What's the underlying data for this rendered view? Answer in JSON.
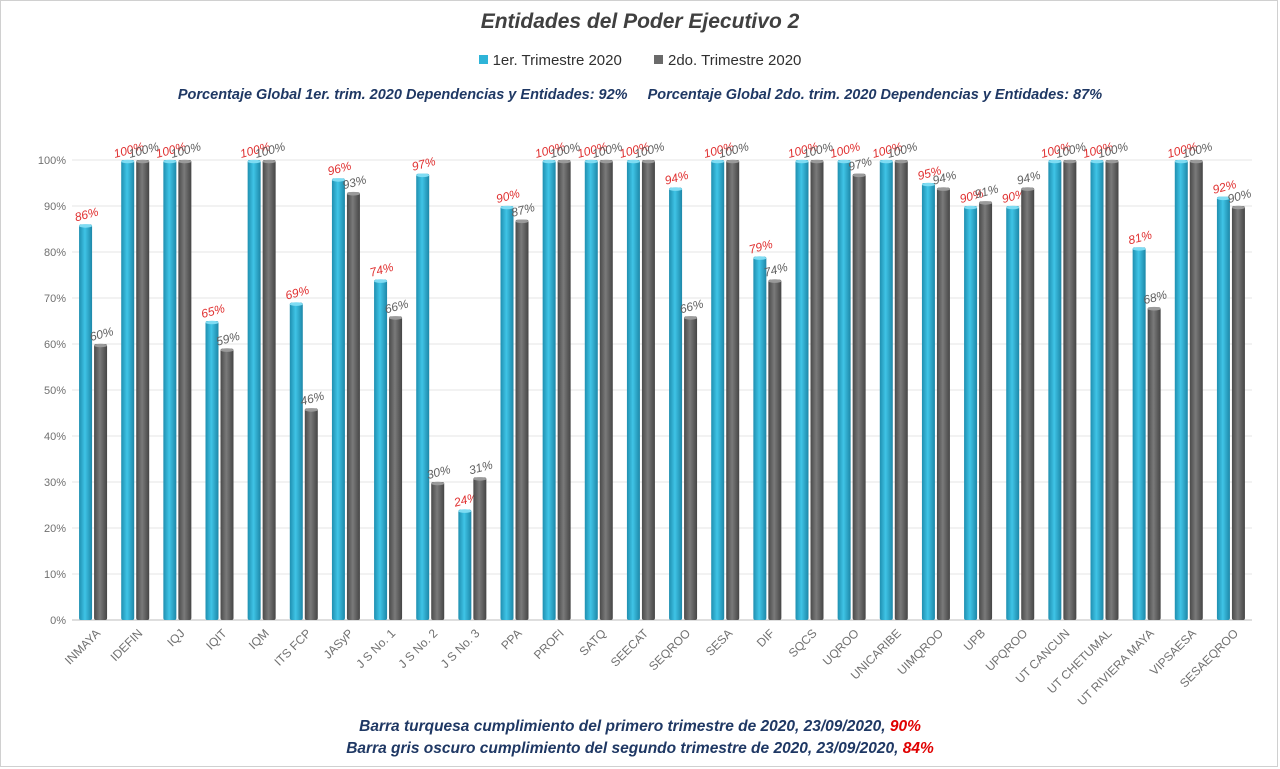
{
  "title": "Entidades del Poder Ejecutivo 2",
  "legend": [
    {
      "name": "1er. Trimestre 2020",
      "color": "#2eb4d8"
    },
    {
      "name": "2do. Trimestre 2020",
      "color": "#6a6a6a"
    }
  ],
  "global_q1": "Porcentaje Global 1er. trim. 2020 Dependencias y Entidades: 92%",
  "global_q2": "Porcentaje Global  2do. trim. 2020 Dependencias y Entidades: 87%",
  "footer": {
    "line1_text": "Barra turquesa cumplimiento del primero trimestre de 2020, 23/09/2020,",
    "line1_pct": "90%",
    "line2_text": "Barra gris oscuro cumplimiento del segundo trimestre de 2020, 23/09/2020,",
    "line2_pct": "84%"
  },
  "chart_data": {
    "type": "bar",
    "title": "Entidades del Poder Ejecutivo 2",
    "categories": [
      "INMAYA",
      "IDEFIN",
      "IQJ",
      "IQIT",
      "IQM",
      "ITS FCP",
      "JASyP",
      "J S No. 1",
      "J S No. 2",
      "J S No. 3",
      "PPA",
      "PROFI",
      "SATQ",
      "SEECAT",
      "SEQROO",
      "SESA",
      "DIF",
      "SQCS",
      "UQROO",
      "UNICARIBE",
      "UIMQROO",
      "UPB",
      "UPQROO",
      "UT CANCUN",
      "UT CHETUMAL",
      "UT RIVIERA MAYA",
      "VIPSAESA",
      "SESAEQROO"
    ],
    "series": [
      {
        "name": "1er. Trimestre 2020",
        "color": "#2eb4d8",
        "label_color": "#e03030",
        "values": [
          86,
          100,
          100,
          65,
          100,
          69,
          96,
          74,
          97,
          24,
          90,
          100,
          100,
          100,
          94,
          100,
          79,
          100,
          100,
          100,
          95,
          90,
          90,
          100,
          100,
          81,
          100,
          92
        ],
        "labels": [
          "86%",
          "100%",
          "100%",
          "65%",
          "100%",
          "69%",
          "96%",
          "74%",
          "97%",
          "24%",
          "90%",
          "100%",
          "100%",
          "100%",
          "94%",
          "100%",
          "79%",
          "100%",
          "100%",
          "100%",
          "95%",
          "90%",
          "90%",
          "100%",
          "100%",
          "81%",
          "100%",
          "92%"
        ]
      },
      {
        "name": "2do. Trimestre 2020",
        "color": "#6a6a6a",
        "label_color": "#606060",
        "values": [
          60,
          100,
          100,
          59,
          100,
          46,
          93,
          66,
          30,
          31,
          87,
          100,
          100,
          100,
          66,
          100,
          74,
          100,
          97,
          100,
          94,
          91,
          94,
          100,
          100,
          68,
          100,
          90
        ],
        "labels": [
          "60%",
          "100%",
          "100%",
          "59%",
          "100%",
          "46%",
          "93%",
          "66%",
          "30%",
          "31%",
          "87%",
          "100%",
          "100%",
          "100%",
          "66%",
          "100%",
          "74%",
          "100%",
          "97%",
          "100%",
          "94%",
          "91%",
          "94%",
          "100%",
          "100%",
          "68%",
          "100%",
          "90%"
        ]
      }
    ],
    "ylim": [
      0,
      100
    ],
    "yticks": [
      "0%",
      "10%",
      "20%",
      "30%",
      "40%",
      "50%",
      "60%",
      "70%",
      "80%",
      "90%",
      "100%"
    ],
    "grid": true,
    "legend_position": "top"
  }
}
